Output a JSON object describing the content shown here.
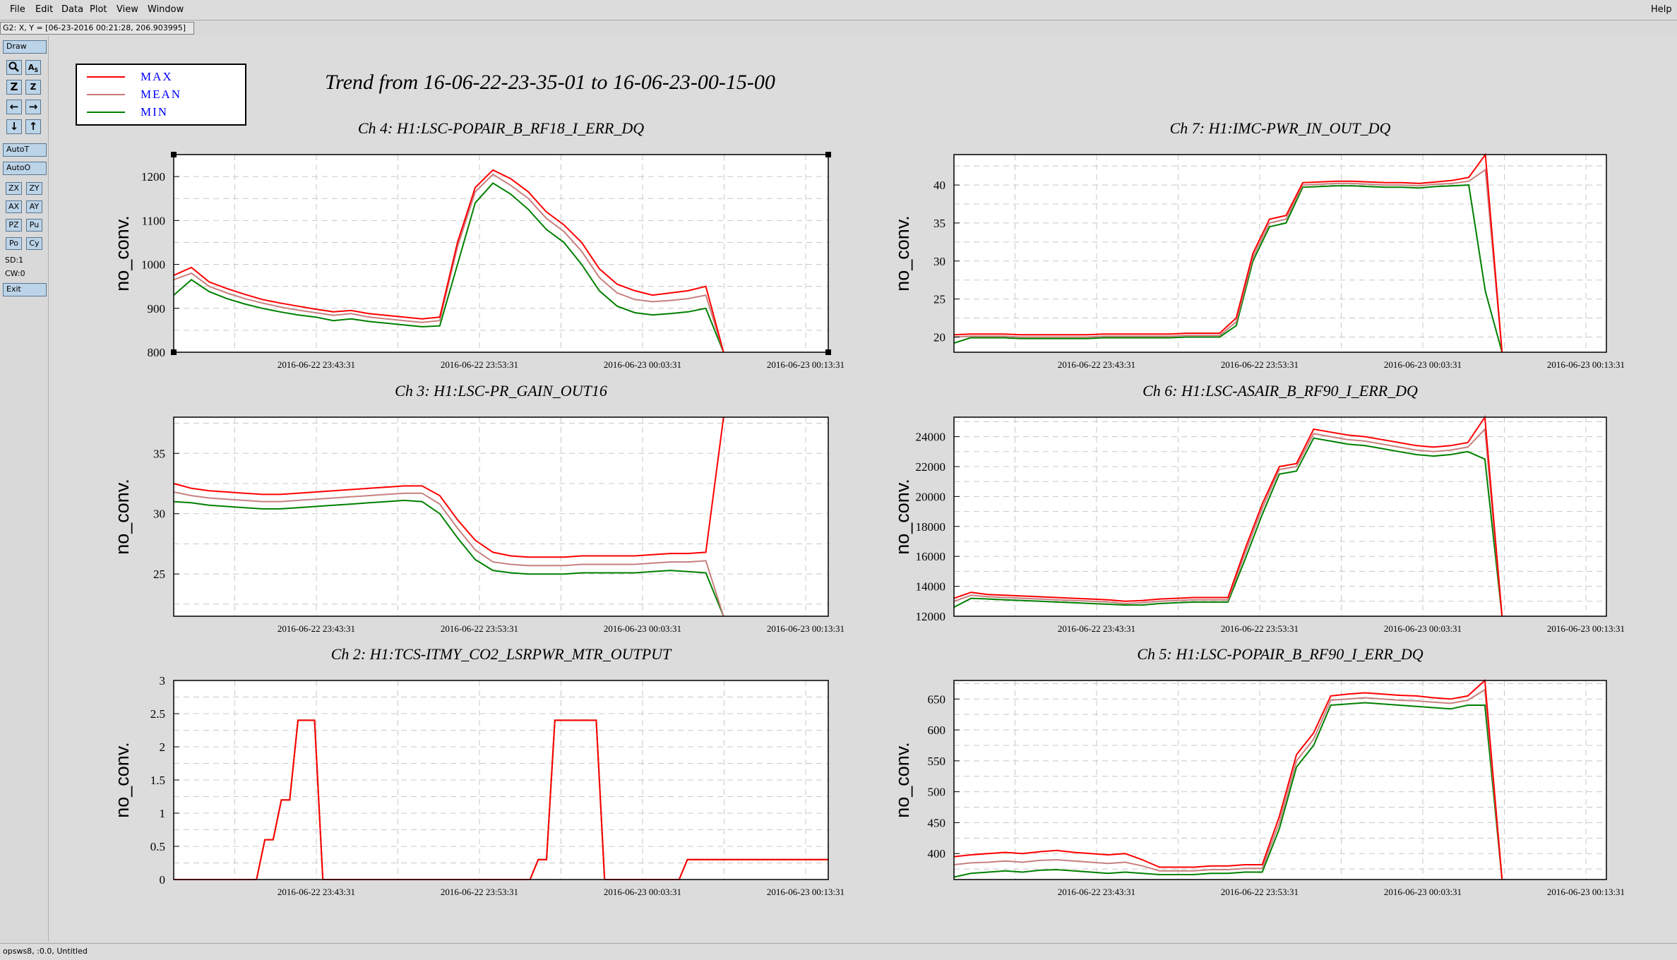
{
  "menu": {
    "file": "File",
    "edit": "Edit",
    "data": "Data",
    "plot": "Plot",
    "view": "View",
    "window": "Window",
    "help": "Help"
  },
  "coord_readout": "G2: X, Y = [06-23-2016 00:21:28, 206.903995]",
  "toolbar": {
    "draw": "Draw",
    "zoom_in": "Z",
    "zoom_out": "Z",
    "auto_t": "AutoT",
    "auto_o": "AutoO",
    "zx": "ZX",
    "zy": "ZY",
    "ax": "AX",
    "ay": "AY",
    "pz": "PZ",
    "pu": "Pu",
    "po": "Po",
    "cy": "Cy",
    "sd": "SD:1",
    "cw": "CW:0",
    "exit": "Exit"
  },
  "legend": [
    {
      "label": "MAX",
      "color": "#ff0000"
    },
    {
      "label": "MEAN",
      "color": "#c87878"
    },
    {
      "label": "MIN",
      "color": "#008000"
    }
  ],
  "title": "Trend from 16-06-22-23-35-01 to 16-06-23-00-15-00",
  "status": "opsws8, :0.0, Untitled",
  "chart_data": [
    {
      "type": "line",
      "title": "Ch 4: H1:LSC-POPAIR_B_RF18_I_ERR_DQ",
      "ylabel": "no_conv.",
      "ylim": [
        800,
        1250
      ],
      "yticks": [
        800,
        900,
        1000,
        1100,
        1200
      ],
      "x_ticks": [
        "2016-06-22 23:43:31",
        "2016-06-22 23:53:31",
        "2016-06-23 00:03:31",
        "2016-06-23 00:13:31"
      ],
      "grid": true,
      "series": [
        {
          "name": "MAX",
          "values": [
            975,
            993,
            960,
            945,
            932,
            920,
            912,
            905,
            898,
            892,
            895,
            888,
            884,
            880,
            876,
            880,
            1050,
            1175,
            1215,
            1195,
            1165,
            1120,
            1090,
            1050,
            990,
            955,
            940,
            930,
            935,
            940,
            950,
            800
          ]
        },
        {
          "name": "MEAN",
          "values": [
            965,
            980,
            950,
            935,
            922,
            912,
            903,
            896,
            890,
            884,
            888,
            880,
            876,
            872,
            868,
            872,
            1040,
            1165,
            1205,
            1180,
            1150,
            1105,
            1075,
            1030,
            970,
            935,
            920,
            915,
            918,
            922,
            930,
            800
          ]
        },
        {
          "name": "MIN",
          "values": [
            930,
            965,
            938,
            922,
            910,
            900,
            892,
            885,
            880,
            872,
            876,
            870,
            866,
            862,
            858,
            860,
            1000,
            1140,
            1185,
            1160,
            1125,
            1080,
            1050,
            1000,
            940,
            905,
            890,
            885,
            888,
            892,
            900,
            800
          ]
        }
      ]
    },
    {
      "type": "line",
      "title": "Ch 7: H1:IMC-PWR_IN_OUT_DQ",
      "ylabel": "no_conv.",
      "ylim": [
        18,
        44
      ],
      "yticks": [
        20,
        25,
        30,
        35,
        40
      ],
      "x_ticks": [
        "2016-06-22 23:43:31",
        "2016-06-22 23:53:31",
        "2016-06-23 00:03:31",
        "2016-06-23 00:13:31"
      ],
      "grid": true,
      "series": [
        {
          "name": "MAX",
          "values": [
            20.3,
            20.4,
            20.4,
            20.4,
            20.3,
            20.3,
            20.3,
            20.3,
            20.3,
            20.4,
            20.4,
            20.4,
            20.4,
            20.4,
            20.5,
            20.5,
            20.5,
            22.5,
            31.0,
            35.5,
            36.0,
            40.3,
            40.4,
            40.5,
            40.5,
            40.4,
            40.3,
            40.3,
            40.2,
            40.4,
            40.6,
            41.0,
            44.0,
            18.0
          ]
        },
        {
          "name": "MEAN",
          "values": [
            20.0,
            20.1,
            20.1,
            20.1,
            20.0,
            20.0,
            20.0,
            20.0,
            20.0,
            20.1,
            20.1,
            20.1,
            20.1,
            20.1,
            20.2,
            20.2,
            20.2,
            22.0,
            30.5,
            35.0,
            35.5,
            40.0,
            40.1,
            40.2,
            40.2,
            40.1,
            40.0,
            40.0,
            39.9,
            40.1,
            40.2,
            40.5,
            42.0,
            18.0
          ]
        },
        {
          "name": "MIN",
          "values": [
            19.2,
            19.9,
            19.9,
            19.9,
            19.8,
            19.8,
            19.8,
            19.8,
            19.8,
            19.9,
            19.9,
            19.9,
            19.9,
            19.9,
            20.0,
            20.0,
            20.0,
            21.5,
            30.0,
            34.5,
            35.0,
            39.7,
            39.8,
            39.9,
            39.9,
            39.8,
            39.7,
            39.7,
            39.6,
            39.8,
            39.9,
            40.0,
            26.0,
            18.0
          ]
        }
      ]
    },
    {
      "type": "line",
      "title": "Ch 3: H1:LSC-PR_GAIN_OUT16",
      "ylabel": "no_conv.",
      "ylim": [
        21.5,
        38
      ],
      "yticks": [
        25,
        30,
        35
      ],
      "x_ticks": [
        "2016-06-22 23:43:31",
        "2016-06-22 23:53:31",
        "2016-06-23 00:03:31",
        "2016-06-23 00:13:31"
      ],
      "grid": true,
      "series": [
        {
          "name": "MAX",
          "values": [
            32.5,
            32.1,
            31.9,
            31.8,
            31.7,
            31.6,
            31.6,
            31.7,
            31.8,
            31.9,
            32.0,
            32.1,
            32.2,
            32.3,
            32.3,
            31.5,
            29.5,
            27.8,
            26.8,
            26.5,
            26.4,
            26.4,
            26.4,
            26.5,
            26.5,
            26.5,
            26.5,
            26.6,
            26.7,
            26.7,
            26.8,
            38.0
          ]
        },
        {
          "name": "MEAN",
          "values": [
            31.8,
            31.5,
            31.3,
            31.2,
            31.1,
            31.0,
            31.0,
            31.1,
            31.2,
            31.3,
            31.4,
            31.5,
            31.6,
            31.7,
            31.7,
            30.8,
            28.8,
            27.0,
            26.0,
            25.8,
            25.7,
            25.7,
            25.7,
            25.8,
            25.8,
            25.8,
            25.8,
            25.9,
            26.0,
            26.0,
            26.1,
            21.5
          ]
        },
        {
          "name": "MIN",
          "values": [
            31.0,
            30.9,
            30.7,
            30.6,
            30.5,
            30.4,
            30.4,
            30.5,
            30.6,
            30.7,
            30.8,
            30.9,
            31.0,
            31.1,
            31.0,
            30.0,
            28.0,
            26.2,
            25.3,
            25.1,
            25.0,
            25.0,
            25.0,
            25.1,
            25.1,
            25.1,
            25.1,
            25.2,
            25.3,
            25.2,
            25.1,
            21.5
          ]
        }
      ]
    },
    {
      "type": "line",
      "title": "Ch 6: H1:LSC-ASAIR_B_RF90_I_ERR_DQ",
      "ylabel": "no_conv.",
      "ylim": [
        12000,
        25300
      ],
      "yticks": [
        12000,
        14000,
        16000,
        18000,
        20000,
        22000,
        24000
      ],
      "x_ticks": [
        "2016-06-22 23:43:31",
        "2016-06-22 23:53:31",
        "2016-06-23 00:03:31",
        "2016-06-23 00:13:31"
      ],
      "grid": true,
      "series": [
        {
          "name": "MAX",
          "values": [
            13200,
            13600,
            13450,
            13400,
            13350,
            13300,
            13250,
            13200,
            13150,
            13100,
            13000,
            13050,
            13150,
            13200,
            13250,
            13250,
            13250,
            16500,
            19500,
            22000,
            22200,
            24500,
            24300,
            24100,
            24000,
            23800,
            23600,
            23400,
            23300,
            23400,
            23600,
            25300,
            12000
          ]
        },
        {
          "name": "MEAN",
          "values": [
            13000,
            13400,
            13300,
            13250,
            13200,
            13150,
            13100,
            13050,
            13000,
            12950,
            12850,
            12900,
            13000,
            13050,
            13100,
            13100,
            13100,
            16200,
            19200,
            21800,
            22000,
            24200,
            24000,
            23800,
            23700,
            23500,
            23300,
            23100,
            23000,
            23100,
            23300,
            24500,
            12000
          ]
        },
        {
          "name": "MIN",
          "values": [
            12600,
            13200,
            13150,
            13100,
            13050,
            13000,
            12950,
            12900,
            12850,
            12800,
            12750,
            12750,
            12850,
            12900,
            12950,
            12950,
            12950,
            15800,
            18800,
            21500,
            21700,
            23900,
            23700,
            23500,
            23400,
            23200,
            23000,
            22800,
            22700,
            22800,
            23000,
            22500,
            12000
          ]
        }
      ]
    },
    {
      "type": "line",
      "title": "Ch 2: H1:TCS-ITMY_CO2_LSRPWR_MTR_OUTPUT",
      "ylabel": "no_conv.",
      "ylim": [
        0,
        3
      ],
      "yticks": [
        0,
        0.5,
        1,
        1.5,
        2,
        2.5,
        3
      ],
      "x_ticks": [
        "2016-06-22 23:43:31",
        "2016-06-22 23:53:31",
        "2016-06-23 00:03:31",
        "2016-06-23 00:13:31"
      ],
      "grid": true,
      "series": [
        {
          "name": "MAX",
          "values": [
            0,
            0,
            0,
            0,
            0,
            0,
            0,
            0,
            0,
            0,
            0,
            0.6,
            0.6,
            1.2,
            1.2,
            2.4,
            2.4,
            2.4,
            0,
            0,
            0,
            0,
            0,
            0,
            0,
            0,
            0,
            0,
            0,
            0,
            0,
            0,
            0,
            0,
            0,
            0,
            0,
            0,
            0,
            0,
            0,
            0,
            0,
            0,
            0.3,
            0.3,
            2.4,
            2.4,
            2.4,
            2.4,
            2.4,
            2.4,
            0,
            0,
            0,
            0,
            0,
            0,
            0,
            0,
            0,
            0,
            0.3,
            0.3,
            0.3,
            0.3,
            0.3,
            0.3,
            0.3,
            0.3,
            0.3,
            0.3,
            0.3,
            0.3,
            0.3,
            0.3,
            0.3,
            0.3,
            0.3,
            0.3
          ]
        },
        {
          "name": "MEAN",
          "values": [
            0,
            0,
            0,
            0,
            0,
            0,
            0,
            0,
            0,
            0,
            0,
            0.6,
            0.6,
            1.2,
            1.2,
            2.4,
            2.4,
            2.4,
            0,
            0,
            0,
            0,
            0,
            0,
            0,
            0,
            0,
            0,
            0,
            0,
            0,
            0,
            0,
            0,
            0,
            0,
            0,
            0,
            0,
            0,
            0,
            0,
            0,
            0,
            0.3,
            0.3,
            2.4,
            2.4,
            2.4,
            2.4,
            2.4,
            2.4,
            0,
            0,
            0,
            0,
            0,
            0,
            0,
            0,
            0,
            0,
            0.3,
            0.3,
            0.3,
            0.3,
            0.3,
            0.3,
            0.3,
            0.3,
            0.3,
            0.3,
            0.3,
            0.3,
            0.3,
            0.3,
            0.3,
            0.3,
            0.3,
            0.3
          ]
        },
        {
          "name": "MIN",
          "values": [
            0,
            0,
            0,
            0,
            0,
            0,
            0,
            0,
            0,
            0,
            0,
            0.6,
            0.6,
            1.2,
            1.2,
            2.4,
            2.4,
            2.4,
            0,
            0,
            0,
            0,
            0,
            0,
            0,
            0,
            0,
            0,
            0,
            0,
            0,
            0,
            0,
            0,
            0,
            0,
            0,
            0,
            0,
            0,
            0,
            0,
            0,
            0,
            0.3,
            0.3,
            2.4,
            2.4,
            2.4,
            2.4,
            2.4,
            2.4,
            0,
            0,
            0,
            0,
            0,
            0,
            0,
            0,
            0,
            0,
            0.3,
            0.3,
            0.3,
            0.3,
            0.3,
            0.3,
            0.3,
            0.3,
            0.3,
            0.3,
            0.3,
            0.3,
            0.3,
            0.3,
            0.3,
            0.3,
            0.3,
            0.3
          ]
        }
      ]
    },
    {
      "type": "line",
      "title": "Ch 5: H1:LSC-POPAIR_B_RF90_I_ERR_DQ",
      "ylabel": "no_conv.",
      "ylim": [
        358,
        680
      ],
      "yticks": [
        400,
        450,
        500,
        550,
        600,
        650
      ],
      "x_ticks": [
        "2016-06-22 23:43:31",
        "2016-06-22 23:53:31",
        "2016-06-23 00:03:31",
        "2016-06-23 00:13:31"
      ],
      "grid": true,
      "series": [
        {
          "name": "MAX",
          "values": [
            395,
            398,
            400,
            402,
            400,
            403,
            405,
            402,
            400,
            398,
            400,
            390,
            378,
            378,
            378,
            380,
            380,
            382,
            382,
            460,
            560,
            595,
            655,
            658,
            660,
            658,
            656,
            655,
            652,
            650,
            655,
            680,
            358
          ]
        },
        {
          "name": "MEAN",
          "values": [
            382,
            385,
            386,
            388,
            386,
            389,
            390,
            388,
            386,
            384,
            386,
            380,
            372,
            372,
            372,
            374,
            374,
            376,
            376,
            450,
            550,
            585,
            648,
            650,
            652,
            650,
            648,
            647,
            645,
            643,
            648,
            665,
            358
          ]
        },
        {
          "name": "MIN",
          "values": [
            362,
            368,
            370,
            372,
            370,
            373,
            374,
            372,
            370,
            368,
            370,
            368,
            366,
            366,
            366,
            368,
            368,
            370,
            370,
            440,
            540,
            575,
            640,
            642,
            644,
            642,
            640,
            638,
            636,
            634,
            640,
            640,
            358
          ]
        }
      ]
    }
  ]
}
